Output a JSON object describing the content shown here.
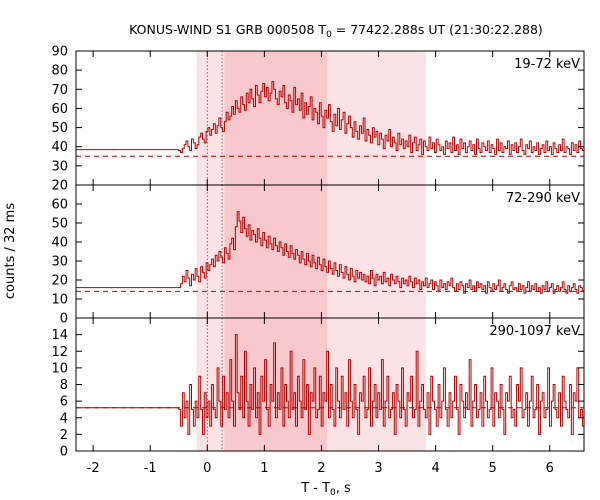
{
  "chart_data": {
    "type": "line",
    "style": "step",
    "title": "KONUS-WIND S1 GRB 000508 T",
    "title_sub": "0",
    "title_rest": " = 77422.288s UT (21:30:22.288)",
    "xlabel": "T - T",
    "xlabel_sub": "0",
    "xlabel_rest": ", s",
    "ylabel": "counts / 32 ms",
    "xlim": [
      -2.3,
      6.6
    ],
    "x_ticks": [
      -2,
      -1,
      0,
      1,
      2,
      3,
      4,
      5,
      6
    ],
    "x_tick_labels": [
      "-2",
      "-1",
      "0",
      "1",
      "2",
      "3",
      "4",
      "5",
      "6"
    ],
    "line_color": "#b20000",
    "shade_inner_color": "#f7c9cc",
    "shade_outer_color": "#fbe3e5",
    "shaded_intervals": {
      "outer": [
        -0.19,
        3.83
      ],
      "inner": [
        0.3,
        2.1
      ]
    },
    "dotted_markers": [
      0.0,
      0.26
    ],
    "panels": [
      {
        "band": "19-72 keV",
        "ylim": [
          20,
          90
        ],
        "y_ticks": [
          20,
          30,
          40,
          50,
          60,
          70,
          80,
          90
        ],
        "y_tick_labels": [
          "20",
          "30",
          "40",
          "50",
          "60",
          "70",
          "80",
          "90"
        ],
        "background": 35,
        "pre_trigger_level": 38.5,
        "pre_trigger_end": -0.5,
        "bin_start": -0.5,
        "bin_width": 0.032,
        "values": [
          38,
          37,
          39,
          41,
          43,
          40,
          38,
          44,
          42,
          39,
          41,
          45,
          47,
          44,
          42,
          48,
          50,
          46,
          49,
          52,
          47,
          51,
          55,
          50,
          48,
          53,
          58,
          54,
          56,
          61,
          57,
          64,
          60,
          58,
          66,
          62,
          59,
          68,
          63,
          70,
          65,
          61,
          72,
          67,
          63,
          69,
          73,
          66,
          71,
          64,
          68,
          74,
          70,
          65,
          62,
          69,
          66,
          72,
          63,
          60,
          67,
          64,
          58,
          71,
          62,
          65,
          59,
          68,
          55,
          63,
          57,
          61,
          66,
          54,
          60,
          58,
          52,
          63,
          56,
          50,
          59,
          55,
          62,
          53,
          48,
          57,
          51,
          60,
          49,
          54,
          58,
          47,
          52,
          56,
          50,
          45,
          53,
          48,
          44,
          51,
          47,
          55,
          43,
          49,
          46,
          42,
          50,
          45,
          48,
          41,
          47,
          44,
          39,
          46,
          43,
          49,
          40,
          45,
          42,
          38,
          47,
          41,
          44,
          39,
          43,
          40,
          46,
          37,
          42,
          45,
          38,
          41,
          44,
          36,
          43,
          40,
          38,
          45,
          39,
          42,
          37,
          44,
          41,
          38,
          40,
          36,
          43,
          39,
          42,
          37,
          45,
          38,
          41,
          36,
          44,
          39,
          42,
          37,
          40,
          43,
          38,
          41,
          36,
          44,
          39,
          37,
          42,
          40,
          38,
          43,
          37,
          41,
          39,
          36,
          44,
          38,
          42,
          37,
          40,
          39,
          43,
          36,
          41,
          38,
          42,
          37,
          40,
          44,
          38,
          36,
          41,
          39,
          43,
          37,
          40,
          38,
          42,
          36,
          39,
          41,
          37,
          43,
          38,
          40,
          36,
          42,
          39,
          37,
          41,
          38,
          44,
          37,
          40,
          39,
          36,
          42,
          38,
          41,
          37,
          43,
          39,
          38,
          40,
          36,
          42,
          39,
          37,
          41,
          38,
          40,
          43,
          37,
          39,
          36,
          41,
          38,
          42,
          37,
          40,
          39,
          36,
          43,
          38,
          41,
          37,
          39,
          42,
          38,
          40,
          36,
          41,
          39,
          37,
          43,
          38,
          40,
          37,
          42,
          39,
          36,
          41,
          38,
          40,
          39,
          37,
          42
        ]
      },
      {
        "band": "72-290 keV",
        "ylim": [
          0,
          70
        ],
        "y_ticks": [
          0,
          10,
          20,
          30,
          40,
          50,
          60
        ],
        "y_tick_labels": [
          "0",
          "10",
          "20",
          "30",
          "40",
          "50",
          "60"
        ],
        "background": 14,
        "pre_trigger_level": 16,
        "pre_trigger_end": -0.5,
        "bin_start": -0.5,
        "bin_width": 0.032,
        "values": [
          16,
          18,
          22,
          19,
          25,
          21,
          17,
          23,
          20,
          26,
          22,
          19,
          27,
          24,
          21,
          29,
          25,
          28,
          31,
          27,
          33,
          30,
          35,
          32,
          29,
          37,
          34,
          31,
          39,
          42,
          36,
          48,
          56,
          51,
          45,
          53,
          47,
          43,
          49,
          41,
          46,
          44,
          40,
          47,
          42,
          38,
          45,
          41,
          37,
          43,
          39,
          36,
          42,
          38,
          35,
          40,
          37,
          33,
          39,
          35,
          32,
          38,
          34,
          31,
          36,
          33,
          29,
          35,
          31,
          28,
          34,
          30,
          27,
          33,
          29,
          26,
          32,
          28,
          25,
          31,
          27,
          24,
          30,
          26,
          23,
          29,
          25,
          22,
          28,
          24,
          21,
          27,
          23,
          20,
          26,
          22,
          19,
          25,
          21,
          24,
          20,
          23,
          19,
          22,
          18,
          25,
          21,
          17,
          23,
          20,
          22,
          18,
          24,
          19,
          21,
          17,
          23,
          20,
          18,
          22,
          19,
          16,
          21,
          18,
          20,
          17,
          22,
          19,
          16,
          21,
          18,
          20,
          15,
          19,
          17,
          21,
          16,
          18,
          20,
          15,
          19,
          17,
          14,
          20,
          16,
          18,
          15,
          19,
          17,
          21,
          16,
          14,
          18,
          15,
          19,
          17,
          13,
          18,
          16,
          20,
          15,
          17,
          14,
          19,
          16,
          18,
          15,
          17,
          13,
          19,
          16,
          14,
          18,
          15,
          17,
          20,
          14,
          16,
          18,
          15,
          13,
          17,
          19,
          15,
          16,
          14,
          18,
          15,
          17,
          13,
          16,
          19,
          14,
          17,
          15,
          18,
          14,
          16,
          13,
          17,
          15,
          19,
          14,
          16,
          18,
          13,
          15,
          17,
          14,
          16,
          19,
          15,
          13,
          17,
          14,
          16,
          18,
          15,
          13,
          17,
          16,
          14,
          18,
          15,
          13,
          16,
          17,
          14,
          15,
          18,
          13,
          16,
          15,
          17,
          14,
          13,
          16,
          18,
          15,
          14,
          17,
          13,
          16,
          15,
          12,
          17,
          14,
          16,
          13,
          15,
          18,
          14,
          12,
          16,
          15,
          17,
          13,
          14,
          16,
          12,
          15
        ]
      },
      {
        "band": "290-1097 keV",
        "ylim": [
          0,
          16
        ],
        "y_ticks": [
          0,
          2,
          4,
          6,
          8,
          10,
          12,
          14
        ],
        "y_tick_labels": [
          "0",
          "2",
          "4",
          "6",
          "8",
          "10",
          "12",
          "14"
        ],
        "background": 5.2,
        "pre_trigger_level": 5.2,
        "pre_trigger_end": -0.5,
        "bin_start": -0.5,
        "bin_width": 0.032,
        "values": [
          5,
          3,
          7,
          4,
          6,
          2,
          8,
          5,
          3,
          6,
          4,
          9,
          5,
          2,
          7,
          4,
          6,
          3,
          8,
          5,
          4,
          10,
          6,
          3,
          9,
          5,
          7,
          4,
          11,
          6,
          3,
          14,
          7,
          5,
          9,
          4,
          12,
          6,
          3,
          8,
          5,
          10,
          4,
          7,
          2,
          9,
          6,
          11,
          5,
          3,
          8,
          6,
          13,
          4,
          7,
          5,
          10,
          3,
          8,
          6,
          4,
          12,
          5,
          7,
          3,
          9,
          6,
          4,
          11,
          5,
          8,
          2,
          7,
          6,
          10,
          4,
          5,
          9,
          3,
          7,
          6,
          12,
          4,
          8,
          5,
          3,
          10,
          6,
          4,
          9,
          5,
          7,
          3,
          11,
          6,
          4,
          8,
          5,
          2,
          7,
          6,
          9,
          4,
          5,
          10,
          3,
          6,
          8,
          4,
          7,
          5,
          11,
          3,
          6,
          9,
          4,
          5,
          7,
          2,
          8,
          6,
          4,
          10,
          5,
          3,
          7,
          6,
          9,
          4,
          5,
          12,
          3,
          6,
          8,
          5,
          4,
          7,
          2,
          9,
          6,
          5,
          3,
          8,
          4,
          6,
          10,
          5,
          3,
          7,
          4,
          6,
          9,
          5,
          2,
          8,
          6,
          4,
          7,
          5,
          11,
          3,
          6,
          8,
          4,
          5,
          7,
          3,
          9,
          6,
          4,
          5,
          10,
          3,
          7,
          6,
          4,
          8,
          5,
          2,
          7,
          6,
          9,
          4,
          5,
          3,
          8,
          6,
          10,
          4,
          5,
          7,
          3,
          6,
          9,
          4,
          5,
          8,
          2,
          6,
          7,
          4,
          5,
          10,
          3,
          6,
          8,
          5,
          4,
          7,
          3,
          9,
          6,
          5,
          4,
          8,
          2,
          7,
          6,
          10,
          4,
          5,
          3,
          8,
          6,
          4,
          7,
          5,
          9,
          3,
          6,
          8,
          4,
          5,
          7,
          2,
          6,
          9,
          4,
          5,
          8,
          3,
          6,
          7,
          4,
          10,
          5,
          3,
          6,
          8,
          4,
          7,
          5,
          2,
          9,
          6,
          4,
          5,
          7,
          3,
          8,
          6,
          4,
          5,
          9,
          3,
          7,
          5,
          6,
          4
        ]
      }
    ]
  }
}
